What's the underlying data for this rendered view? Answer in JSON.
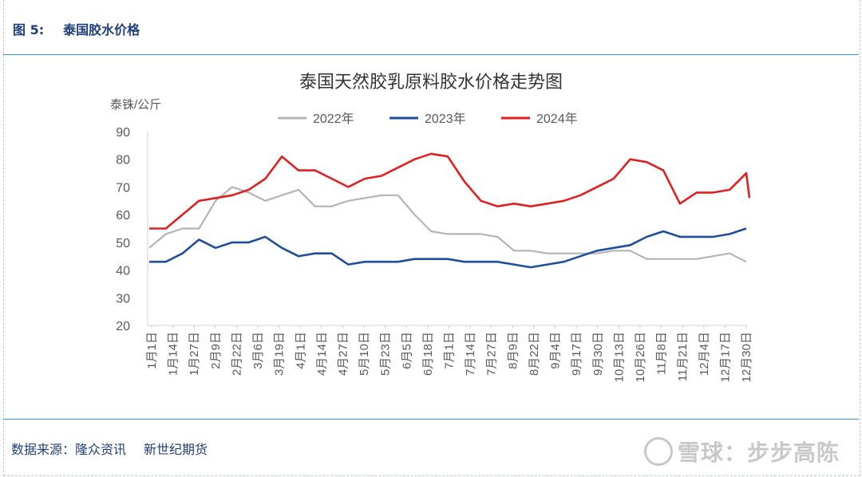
{
  "figure": {
    "label": "图  5:",
    "title": "泰国胶水价格"
  },
  "source": {
    "label": "数据来源：隆众资讯",
    "org": "新世纪期货"
  },
  "watermark": "雪球：步步高陈",
  "colors": {
    "s2022": "#b4b4b4",
    "s2023": "#1f4e9a",
    "s2024": "#e02020",
    "axis": "#d0d0d0",
    "text": "#595959"
  },
  "chart_data": {
    "type": "line",
    "title": "泰国天然胶乳原料胶水价格走势图",
    "ylabel": "泰铢/公斤",
    "xlabel": "",
    "ylim": [
      20,
      90
    ],
    "yticks": [
      20,
      30,
      40,
      50,
      60,
      70,
      80,
      90
    ],
    "grid": false,
    "legend": "top",
    "x_ticks": [
      "1月1日",
      "1月14日",
      "1月27日",
      "2月9日",
      "2月22日",
      "3月6日",
      "3月19日",
      "4月1日",
      "4月14日",
      "4月27日",
      "5月10日",
      "5月23日",
      "6月5日",
      "6月18日",
      "7月1日",
      "7月14日",
      "7月27日",
      "8月9日",
      "8月22日",
      "9月4日",
      "9月17日",
      "9月30日",
      "10月13日",
      "10月26日",
      "11月8日",
      "11月21日",
      "12月4日",
      "12月17日",
      "12月30日"
    ],
    "series": [
      {
        "name": "2022年",
        "color": "#b4b4b4",
        "values": [
          48,
          53,
          55,
          55,
          65,
          70,
          68,
          65,
          67,
          69,
          63,
          63,
          65,
          66,
          67,
          67,
          60,
          54,
          53,
          53,
          53,
          52,
          47,
          47,
          46,
          46,
          46,
          46,
          47,
          47,
          44,
          44,
          44,
          44,
          45,
          46,
          43
        ]
      },
      {
        "name": "2023年",
        "color": "#1f4e9a",
        "values": [
          43,
          43,
          46,
          51,
          48,
          50,
          50,
          52,
          48,
          45,
          46,
          46,
          42,
          43,
          43,
          43,
          44,
          44,
          44,
          43,
          43,
          43,
          42,
          41,
          42,
          43,
          45,
          47,
          48,
          49,
          52,
          54,
          52,
          52,
          52,
          53,
          55
        ]
      },
      {
        "name": "2024年",
        "color": "#e02020",
        "values": [
          55,
          55,
          60,
          65,
          66,
          67,
          69,
          73,
          81,
          76,
          76,
          73,
          70,
          73,
          74,
          77,
          80,
          82,
          81,
          72,
          65,
          63,
          64,
          63,
          64,
          65,
          67,
          70,
          73,
          80,
          79,
          76,
          64,
          68,
          68,
          69,
          75
        ]
      }
    ],
    "series_end_dip_2024": 66
  }
}
